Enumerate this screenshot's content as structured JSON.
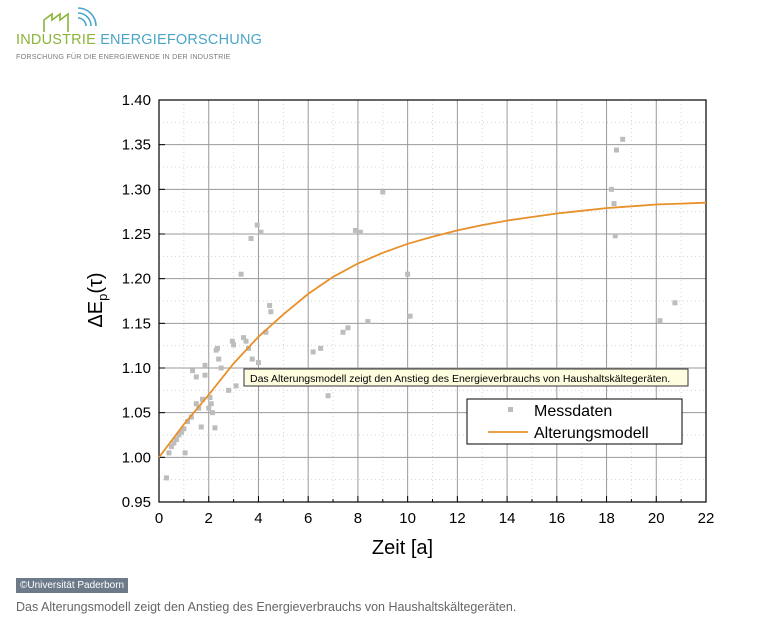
{
  "header": {
    "logo_word1": "INDUSTRIE",
    "logo_word2": "ENERGIEFORSCHUNG",
    "tagline": "FORSCHUNG FÜR DIE ENERGIEWENDE IN DER INDUSTRIE",
    "logo_icon": "factory-wifi-icon"
  },
  "chart_data": {
    "type": "scatter",
    "title": "",
    "xlabel": "Zeit [a]",
    "ylabel": "ΔEp(τ)",
    "xlim": [
      0,
      22
    ],
    "ylim": [
      0.95,
      1.4
    ],
    "xticks": [
      0,
      2,
      4,
      6,
      8,
      10,
      12,
      14,
      16,
      18,
      20,
      22
    ],
    "yticks": [
      "0.95",
      "1.00",
      "1.05",
      "1.10",
      "1.15",
      "1.20",
      "1.25",
      "1.30",
      "1.35",
      "1.40"
    ],
    "grid": true,
    "legend_position": "lower-right",
    "series": [
      {
        "name": "Messdaten",
        "kind": "scatter",
        "color": "#bdbdbd",
        "points": [
          [
            0.3,
            0.977
          ],
          [
            0.4,
            1.005
          ],
          [
            0.5,
            1.012
          ],
          [
            0.6,
            1.016
          ],
          [
            0.7,
            1.02
          ],
          [
            0.8,
            1.025
          ],
          [
            0.9,
            1.028
          ],
          [
            1.0,
            1.032
          ],
          [
            1.05,
            1.005
          ],
          [
            1.15,
            1.04
          ],
          [
            1.3,
            1.045
          ],
          [
            1.35,
            1.097
          ],
          [
            1.5,
            1.09
          ],
          [
            1.5,
            1.06
          ],
          [
            1.6,
            1.055
          ],
          [
            1.7,
            1.034
          ],
          [
            1.75,
            1.065
          ],
          [
            1.85,
            1.092
          ],
          [
            1.85,
            1.103
          ],
          [
            2.0,
            1.055
          ],
          [
            2.05,
            1.067
          ],
          [
            2.1,
            1.06
          ],
          [
            2.15,
            1.05
          ],
          [
            2.25,
            1.033
          ],
          [
            2.3,
            1.12
          ],
          [
            2.35,
            1.122
          ],
          [
            2.4,
            1.11
          ],
          [
            2.5,
            1.1
          ],
          [
            2.8,
            1.075
          ],
          [
            2.95,
            1.13
          ],
          [
            3.0,
            1.126
          ],
          [
            3.1,
            1.08
          ],
          [
            3.3,
            1.205
          ],
          [
            3.4,
            1.134
          ],
          [
            3.5,
            1.13
          ],
          [
            3.6,
            1.122
          ],
          [
            3.7,
            1.245
          ],
          [
            3.75,
            1.11
          ],
          [
            3.95,
            1.26
          ],
          [
            4.0,
            1.106
          ],
          [
            4.1,
            1.252
          ],
          [
            4.3,
            1.14
          ],
          [
            4.45,
            1.17
          ],
          [
            4.5,
            1.163
          ],
          [
            6.2,
            1.118
          ],
          [
            6.5,
            1.122
          ],
          [
            6.8,
            1.069
          ],
          [
            7.4,
            1.14
          ],
          [
            7.6,
            1.145
          ],
          [
            7.9,
            1.254
          ],
          [
            8.1,
            1.252
          ],
          [
            8.4,
            1.152
          ],
          [
            9.0,
            1.297
          ],
          [
            10.0,
            1.205
          ],
          [
            10.1,
            1.158
          ],
          [
            18.2,
            1.3
          ],
          [
            18.3,
            1.284
          ],
          [
            18.35,
            1.248
          ],
          [
            18.4,
            1.344
          ],
          [
            18.65,
            1.356
          ],
          [
            20.15,
            1.153
          ],
          [
            20.75,
            1.173
          ]
        ]
      },
      {
        "name": "Alterungsmodell",
        "kind": "line",
        "color": "#e8902a",
        "x": [
          0,
          1,
          2,
          3,
          4,
          5,
          6,
          7,
          8,
          9,
          10,
          11,
          12,
          13,
          14,
          15,
          16,
          17,
          18,
          19,
          20,
          21,
          22
        ],
        "y": [
          1.0,
          1.037,
          1.07,
          1.105,
          1.135,
          1.16,
          1.183,
          1.202,
          1.217,
          1.229,
          1.239,
          1.247,
          1.254,
          1.26,
          1.265,
          1.269,
          1.273,
          1.276,
          1.279,
          1.281,
          1.283,
          1.284,
          1.285
        ]
      }
    ],
    "annotation": "Das Alterungsmodell zeigt den Anstieg des Energieverbrauchs von Haushaltskältegeräten."
  },
  "credit": "©Universität Paderborn",
  "caption": "Das Alterungsmodell zeigt den Anstieg des Energieverbrauchs von Haushaltskältegeräten.",
  "colors": {
    "logo_green": "#8bb43a",
    "logo_blue": "#4aa6c8",
    "credit_bg": "#6c7a89"
  }
}
